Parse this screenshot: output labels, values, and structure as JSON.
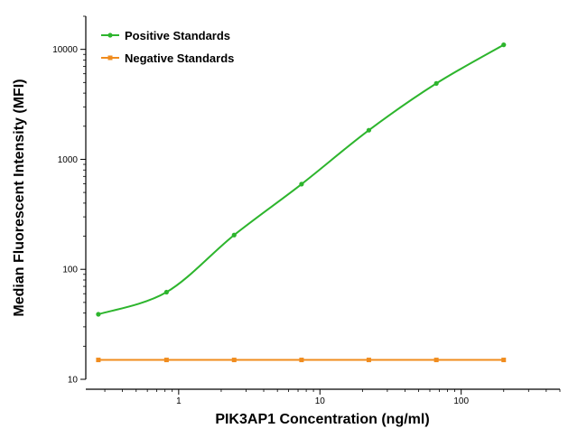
{
  "chart_data": {
    "type": "line",
    "xscale": "log",
    "yscale": "log",
    "xlabel": "PIK3AP1 Concentration (ng/ml)",
    "ylabel": "Median Fluorescent Intensity (MFI)",
    "xlim": [
      0.22,
      500
    ],
    "ylim": [
      10,
      20000
    ],
    "x_ticks": [
      1,
      10,
      100
    ],
    "x_tick_labels": [
      "1",
      "10",
      "100"
    ],
    "y_ticks": [
      10,
      100,
      1000,
      10000
    ],
    "y_tick_labels": [
      "10",
      "100",
      "1000",
      "10000"
    ],
    "grid": false,
    "legend_position": "top-left",
    "series": [
      {
        "name": "Positive Standards",
        "color": "#2db52d",
        "marker": "circle",
        "x": [
          0.27,
          0.82,
          2.47,
          7.41,
          22.2,
          66.7,
          200
        ],
        "y": [
          39,
          62,
          205,
          595,
          1840,
          4900,
          11000
        ],
        "fit": "smooth-curve"
      },
      {
        "name": "Negative Standards",
        "color": "#f08c1e",
        "marker": "square",
        "x": [
          0.27,
          0.82,
          2.47,
          7.41,
          22.2,
          66.7,
          200
        ],
        "y": [
          15,
          15,
          15,
          15,
          15,
          15,
          15
        ],
        "fit": "straight-line"
      }
    ]
  }
}
